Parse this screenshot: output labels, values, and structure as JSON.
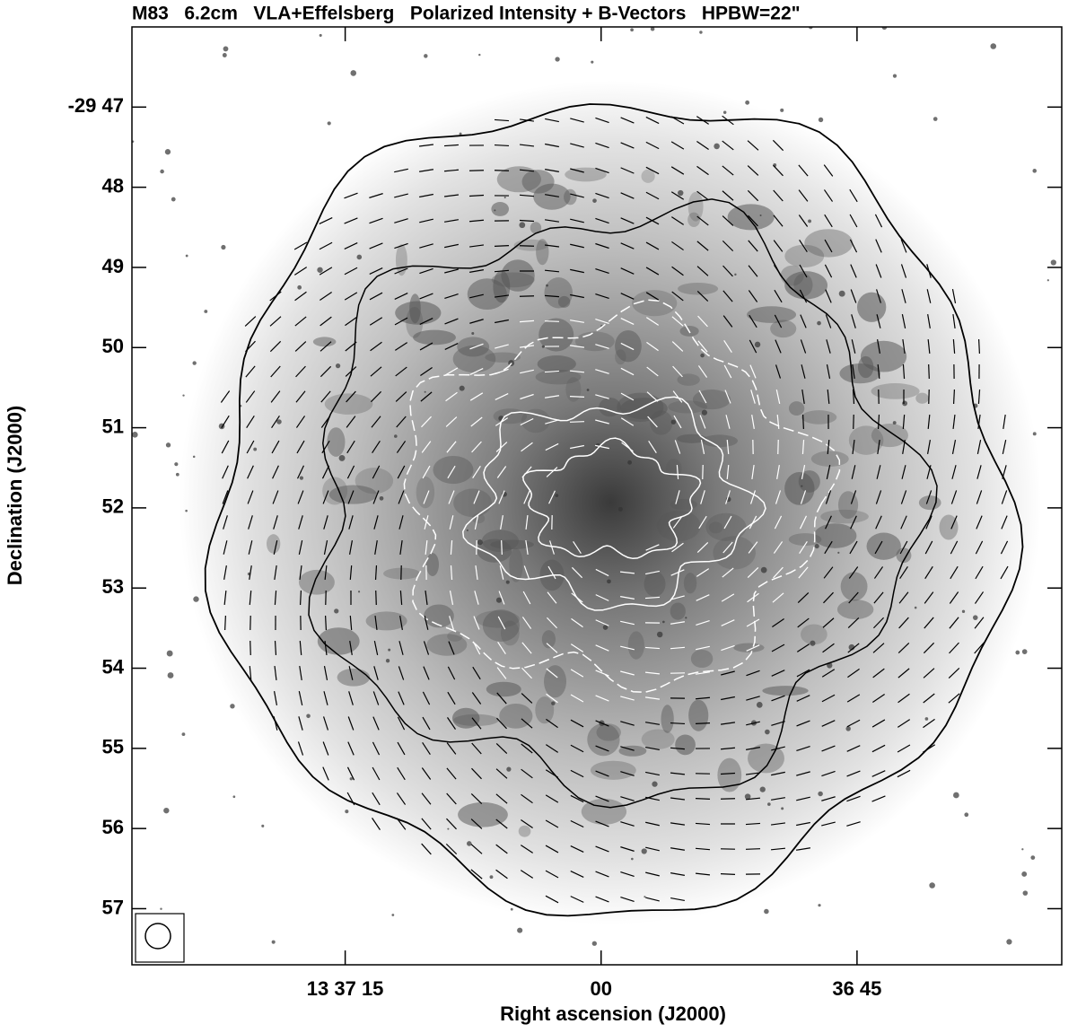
{
  "chart_data": {
    "type": "image",
    "title": "M83   6.2cm   VLA+Effelsberg   Polarized Intensity + B-Vectors   HPBW=22\"",
    "xlabel": "Right ascension (J2000)",
    "ylabel": "Declination (J2000)",
    "xlim": [
      87.5,
      33
    ],
    "xticks": [
      {
        "value": 75,
        "label": "13 37 15"
      },
      {
        "value": 60,
        "label": "00"
      },
      {
        "value": 45,
        "label": "36 45"
      }
    ],
    "ylim": [
      46.0,
      57.7
    ],
    "yticks": [
      {
        "value": 47,
        "label": "-29 47"
      },
      48,
      49,
      50,
      51,
      52,
      53,
      54,
      55,
      56,
      57
    ]
  }
}
